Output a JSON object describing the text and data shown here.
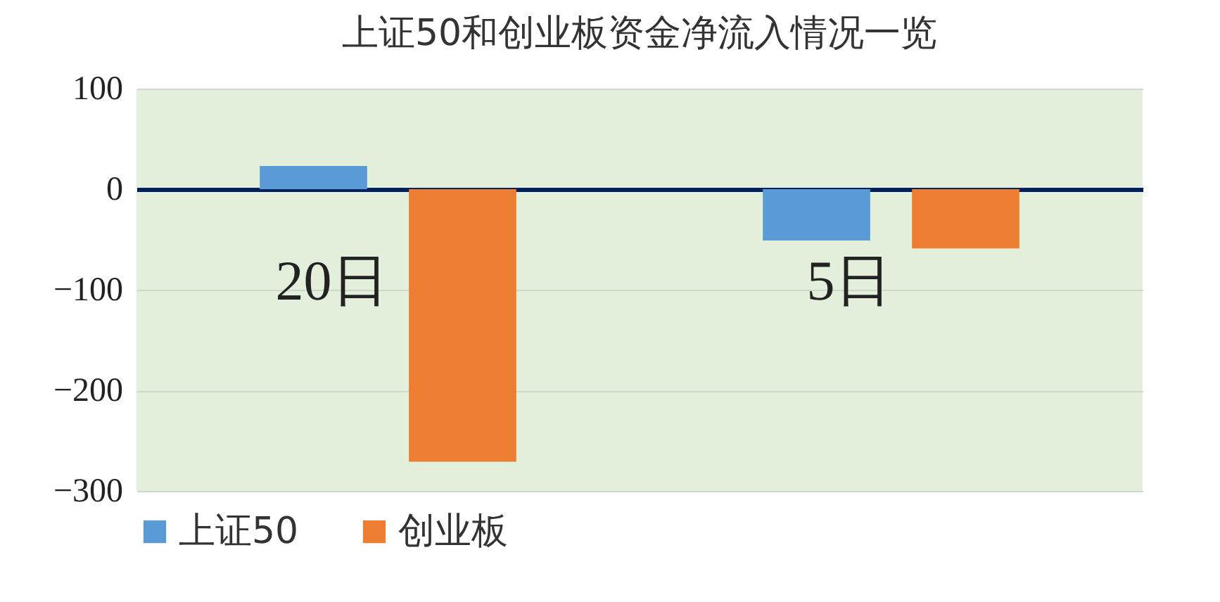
{
  "chart_data": {
    "type": "bar",
    "title": "上证50和创业板资金净流入情况一览",
    "categories": [
      "20日",
      "5日"
    ],
    "series": [
      {
        "name": "上证50",
        "color": "#5b9bd5",
        "values": [
          23,
          -51
        ]
      },
      {
        "name": "创业板",
        "color": "#ed7d31",
        "values": [
          -271,
          -59
        ]
      }
    ],
    "ylim": [
      -300,
      100
    ],
    "yticks": [
      -300,
      -200,
      -100,
      0,
      100
    ],
    "grid": "y",
    "legend": "bottom"
  }
}
